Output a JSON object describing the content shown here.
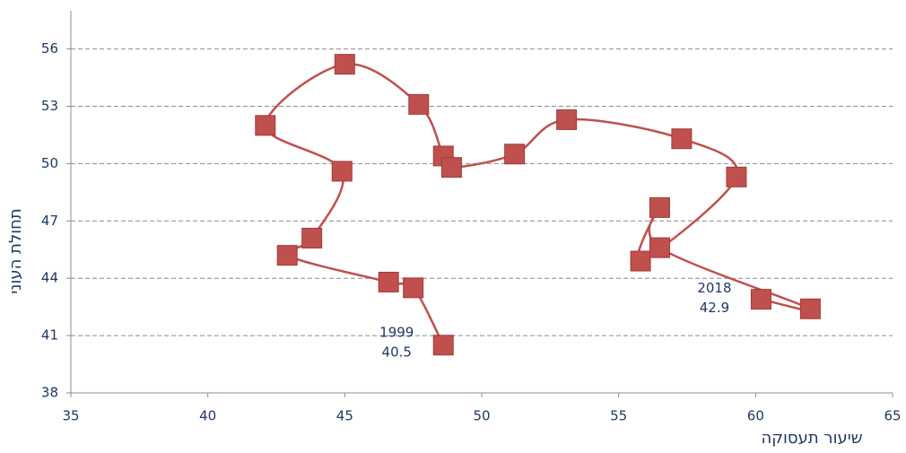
{
  "chart_data": {
    "type": "connected-scatter",
    "x_label": "שיעור תעסוקה",
    "y_label": "תחולת העוני",
    "x": [
      48.6,
      47.5,
      46.6,
      42.9,
      43.8,
      44.9,
      42.1,
      45.0,
      47.7,
      48.6,
      48.9,
      51.2,
      53.1,
      57.3,
      59.3,
      55.8,
      56.5,
      56.5,
      62.0,
      60.2
    ],
    "values": [
      40.5,
      43.5,
      43.8,
      45.2,
      46.1,
      49.6,
      52.0,
      55.2,
      53.1,
      50.4,
      49.8,
      50.5,
      52.3,
      51.3,
      49.3,
      44.9,
      47.7,
      45.6,
      42.4,
      42.9
    ],
    "point_labels": [
      "1999",
      null,
      null,
      null,
      null,
      null,
      null,
      null,
      null,
      null,
      null,
      null,
      null,
      null,
      null,
      null,
      null,
      null,
      null,
      "2018"
    ],
    "value_labels": [
      "40.5",
      null,
      null,
      null,
      null,
      null,
      null,
      null,
      null,
      null,
      null,
      null,
      null,
      null,
      null,
      null,
      null,
      null,
      null,
      "42.9"
    ],
    "color": "#c0504d",
    "xlim": [
      35,
      65
    ],
    "xticks": [
      35,
      40,
      45,
      50,
      55,
      60,
      65
    ],
    "ylim": [
      38,
      58
    ],
    "yticks": [
      38,
      41,
      44,
      47,
      50,
      53,
      56
    ],
    "grid": true,
    "smooth": true
  }
}
